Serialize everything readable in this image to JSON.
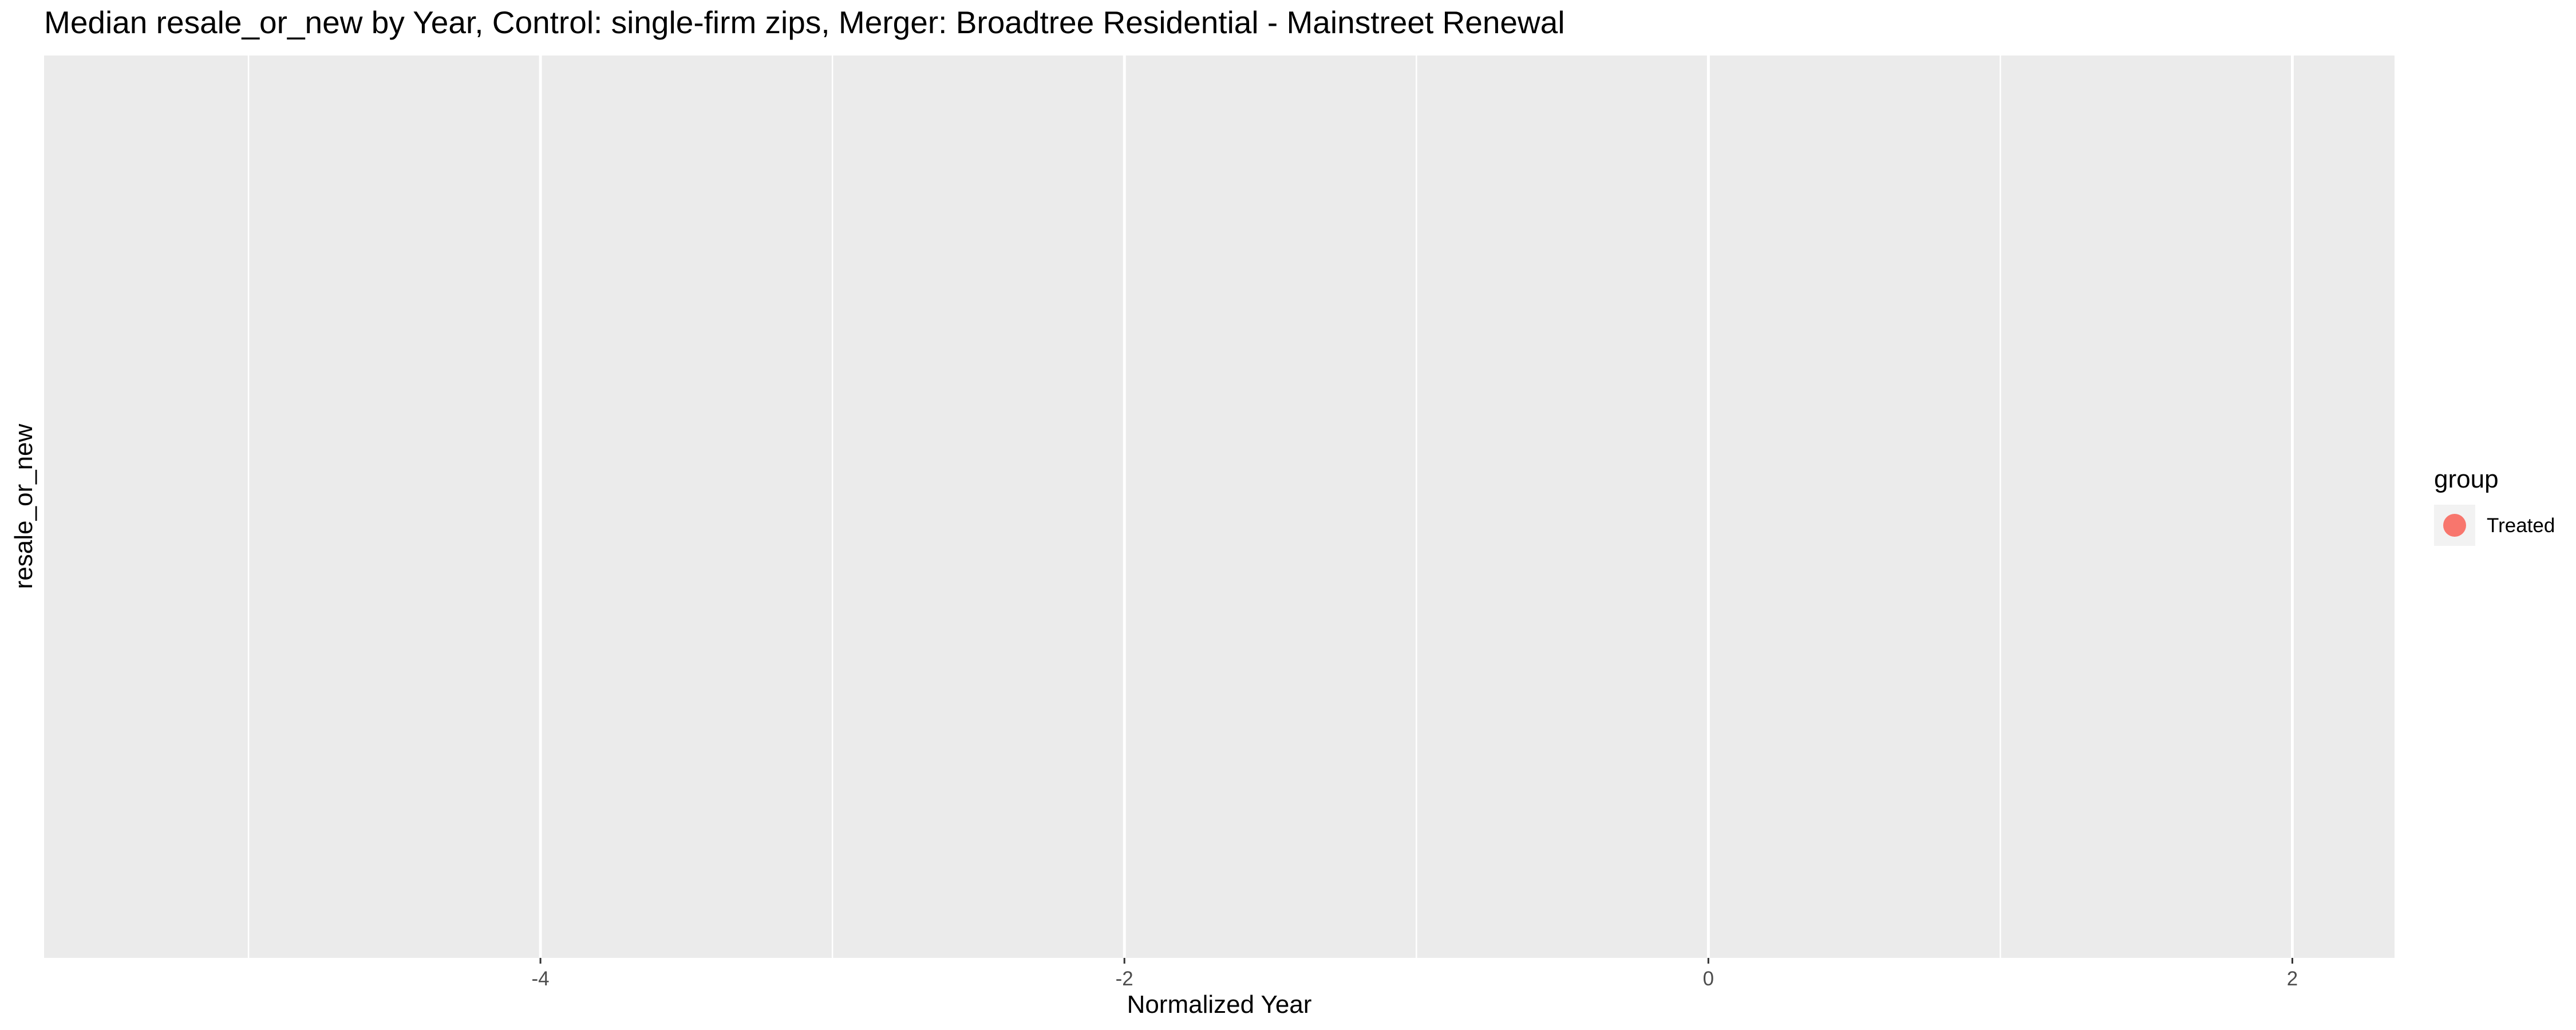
{
  "chart_data": {
    "type": "scatter",
    "title": "Median resale_or_new by Year, Control: single-firm zips, Merger: Broadtree Residential - Mainstreet Renewal",
    "xlabel": "Normalized Year",
    "ylabel": "resale_or_new",
    "xlim": [
      -5.7,
      2.35
    ],
    "x_ticks": [
      -4,
      -2,
      0,
      2
    ],
    "x_tick_labels": [
      "-4",
      "-2",
      "0",
      "2"
    ],
    "x_minor_ticks": [
      -5,
      -3,
      -1,
      1
    ],
    "y_ticks": [],
    "grid": true,
    "legend": {
      "title": "group",
      "position": "right",
      "entries": [
        {
          "label": "Treated",
          "color": "#F8766D"
        }
      ]
    },
    "series": [
      {
        "name": "Treated",
        "color": "#F8766D",
        "points": []
      }
    ]
  }
}
